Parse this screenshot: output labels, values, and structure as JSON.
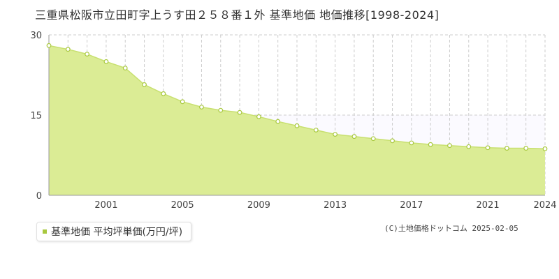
{
  "colors": {
    "fill": "#dbec95",
    "line": "#c8e070",
    "marker": "#a8c83e",
    "grid": "#cccccc",
    "axis": "#999999"
  },
  "chart_data": {
    "type": "area",
    "title": "三重県松阪市立田町字上うす田２５８番１外 基準地価 地価推移[1998-2024]",
    "xlim": [
      1998,
      2024
    ],
    "ylim": [
      0,
      30
    ],
    "yticks": [
      0,
      15,
      30
    ],
    "xtick_labels": [
      "2001",
      "2005",
      "2009",
      "2013",
      "2017",
      "2021",
      "2024"
    ],
    "x": [
      1998,
      1999,
      2000,
      2001,
      2002,
      2003,
      2004,
      2005,
      2006,
      2007,
      2008,
      2009,
      2010,
      2011,
      2012,
      2013,
      2014,
      2015,
      2016,
      2017,
      2018,
      2019,
      2020,
      2021,
      2022,
      2023,
      2024
    ],
    "series": [
      {
        "name": "基準地価 平均坪単価(万円/坪)",
        "values": [
          28.0,
          27.3,
          26.4,
          25.0,
          23.8,
          20.7,
          19.0,
          17.5,
          16.5,
          15.9,
          15.5,
          14.7,
          13.8,
          13.0,
          12.2,
          11.4,
          11.0,
          10.6,
          10.2,
          9.8,
          9.5,
          9.3,
          9.1,
          8.9,
          8.8,
          8.8,
          8.7
        ]
      }
    ],
    "grid": true,
    "legend_position": "bottom-left"
  },
  "legend": {
    "label": "基準地価 平均坪単価(万円/坪)"
  },
  "footer": {
    "copyright": "(C)土地価格ドットコム 2025-02-05"
  }
}
